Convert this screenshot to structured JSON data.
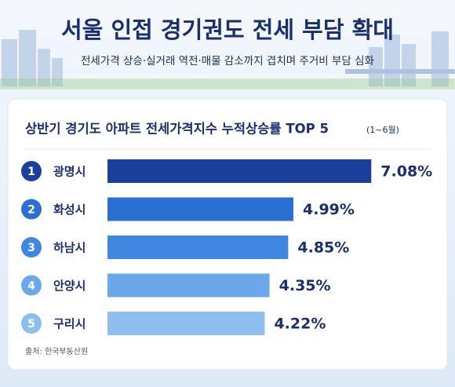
{
  "header": {
    "title": "서울 인접 경기권도 전세 부담 확대",
    "subtitle": "전세가격 상승·실거래 역전·매물 감소까지 겹치며 주거비 부담 심화"
  },
  "chart_data": {
    "type": "bar",
    "orientation": "horizontal",
    "title": "상반기 경기도 아파트 전세가격지수 누적상승률 TOP 5",
    "subtitle": "(1~6월)",
    "ranks": [
      "1",
      "2",
      "3",
      "4",
      "5"
    ],
    "categories": [
      "광명시",
      "화성시",
      "하남시",
      "안양시",
      "구리시"
    ],
    "values": [
      7.08,
      4.99,
      4.85,
      4.35,
      4.22
    ],
    "value_labels": [
      "7.08%",
      "4.99%",
      "4.85%",
      "4.35%",
      "4.22%"
    ],
    "colors": [
      "#1a3f9c",
      "#2b6fd3",
      "#3f87e0",
      "#6aa8ea",
      "#8ebdf0"
    ],
    "source": "출처: 한국부동산원"
  }
}
